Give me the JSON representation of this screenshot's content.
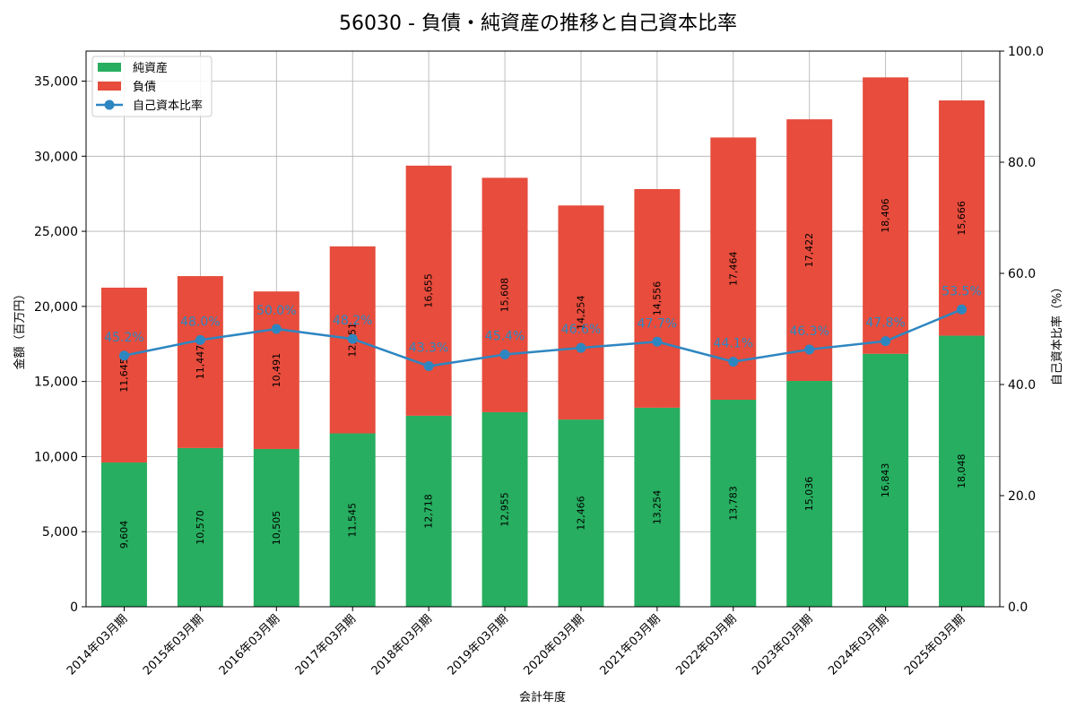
{
  "chart_data": {
    "type": "bar",
    "title": "56030 - 負債・純資産の推移と自己資本比率",
    "xlabel": "会計年度",
    "ylabel": "金額（百万円）",
    "y2label": "自己資本比率（%）",
    "ylim": [
      0,
      37000
    ],
    "y2lim": [
      0,
      100
    ],
    "yticks": [
      0,
      5000,
      10000,
      15000,
      20000,
      25000,
      30000,
      35000
    ],
    "ytick_labels": [
      "0",
      "5,000",
      "10,000",
      "15,000",
      "20,000",
      "25,000",
      "30,000",
      "35,000"
    ],
    "y2ticks": [
      0,
      20,
      40,
      60,
      80,
      100
    ],
    "y2tick_labels": [
      "0.0",
      "20.0",
      "40.0",
      "60.0",
      "80.0",
      "100.0"
    ],
    "grid": true,
    "legend_position": "top-left",
    "categories": [
      "2014年03月期",
      "2015年03月期",
      "2016年03月期",
      "2017年03月期",
      "2018年03月期",
      "2019年03月期",
      "2020年03月期",
      "2021年03月期",
      "2022年03月期",
      "2023年03月期",
      "2024年03月期",
      "2025年03月期"
    ],
    "series": [
      {
        "name": "純資産",
        "kind": "bar",
        "color": "#27ae60",
        "values": [
          9604,
          10570,
          10505,
          11545,
          12718,
          12955,
          12466,
          13254,
          13783,
          15036,
          16843,
          18048
        ],
        "labels": [
          "9,604",
          "10,570",
          "10,505",
          "11,545",
          "12,718",
          "12,955",
          "12,466",
          "13,254",
          "13,783",
          "15,036",
          "16,843",
          "18,048"
        ]
      },
      {
        "name": "負債",
        "kind": "bar",
        "color": "#e74c3c",
        "values": [
          11645,
          11447,
          10491,
          12451,
          16655,
          15608,
          14254,
          14556,
          17464,
          17422,
          18406,
          15666
        ],
        "labels": [
          "11,645",
          "11,447",
          "10,491",
          "12,451",
          "16,655",
          "15,608",
          "14,254",
          "14,556",
          "17,464",
          "17,422",
          "18,406",
          "15,666"
        ]
      },
      {
        "name": "自己資本比率",
        "kind": "line",
        "axis": "right",
        "color": "#2e86c1",
        "values": [
          45.2,
          48.0,
          50.0,
          48.2,
          43.3,
          45.4,
          46.6,
          47.7,
          44.1,
          46.3,
          47.8,
          53.5
        ],
        "labels": [
          "45.2%",
          "48.0%",
          "50.0%",
          "48.2%",
          "43.3%",
          "45.4%",
          "46.6%",
          "47.7%",
          "44.1%",
          "46.3%",
          "47.8%",
          "53.5%"
        ]
      }
    ]
  }
}
